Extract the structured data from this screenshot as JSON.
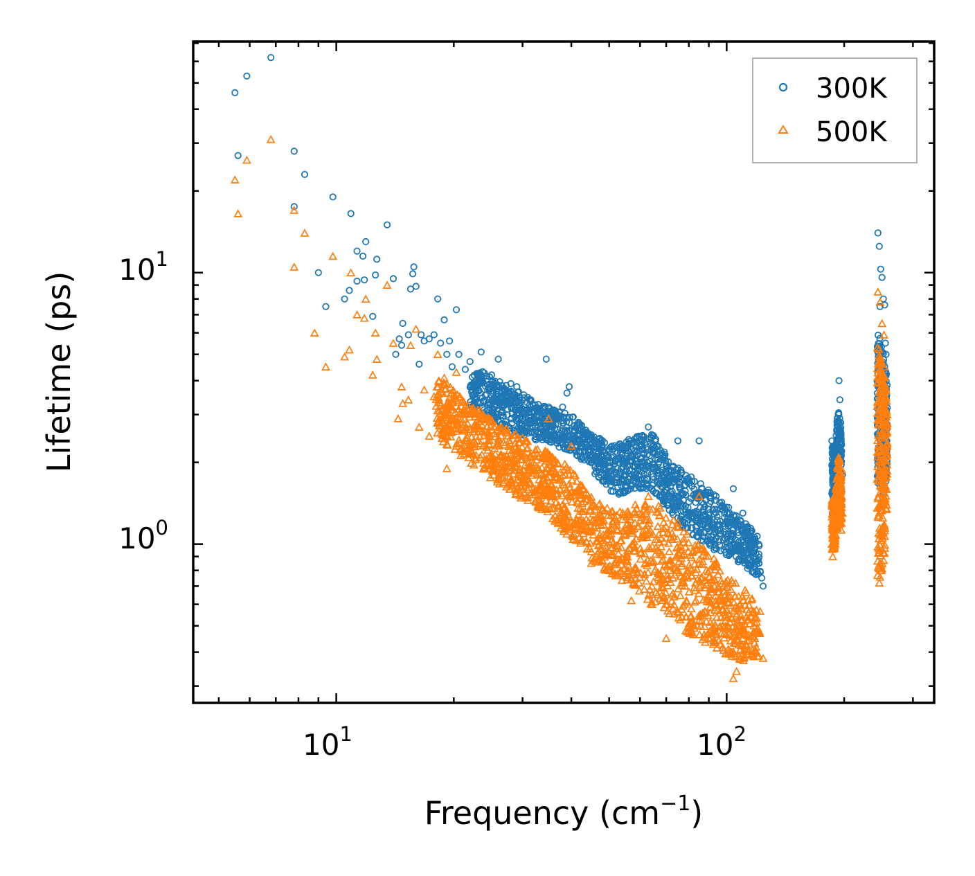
{
  "chart_data": {
    "type": "scatter",
    "title": "",
    "xlabel": "Frequency (cm",
    "xlabel_sup": "−1",
    "xlabel_tail": ")",
    "ylabel": "Lifetime (ps)",
    "xscale": "log",
    "yscale": "log",
    "xlim": [
      4.3,
      340
    ],
    "ylim": [
      0.26,
      71
    ],
    "x_ticks": [
      {
        "value": 10,
        "base": "10",
        "exp": "1"
      },
      {
        "value": 100,
        "base": "10",
        "exp": "2"
      }
    ],
    "y_ticks": [
      {
        "value": 1,
        "base": "10",
        "exp": "0"
      },
      {
        "value": 10,
        "base": "10",
        "exp": "1"
      }
    ],
    "legend_position": "top-right",
    "series": [
      {
        "name": "300K",
        "marker": "circle",
        "color": "#1f77b4",
        "points": [
          [
            5.5,
            46
          ],
          [
            5.6,
            27
          ],
          [
            5.9,
            53
          ],
          [
            6.8,
            62
          ],
          [
            7.8,
            28
          ],
          [
            7.8,
            17.5
          ],
          [
            8.3,
            23
          ],
          [
            9.0,
            10
          ],
          [
            9.4,
            7.5
          ],
          [
            9.8,
            19
          ],
          [
            10.5,
            8
          ],
          [
            10.8,
            8.6
          ],
          [
            10.9,
            16.5
          ],
          [
            11.3,
            12
          ],
          [
            11.3,
            9.3
          ],
          [
            11.7,
            11.5
          ],
          [
            11.8,
            9.4
          ],
          [
            11.9,
            13
          ],
          [
            12.4,
            6.9
          ],
          [
            12.6,
            9.8
          ],
          [
            12.7,
            11.2
          ],
          [
            13.5,
            15
          ],
          [
            14,
            9.5
          ],
          [
            14.2,
            5
          ],
          [
            14.5,
            5.7
          ],
          [
            14.7,
            5.4
          ],
          [
            14.8,
            6.5
          ],
          [
            15.3,
            5.9
          ],
          [
            15.5,
            8.7
          ],
          [
            15.7,
            9.9
          ],
          [
            15.8,
            10.5
          ],
          [
            16,
            8.9
          ],
          [
            16.3,
            4.6
          ],
          [
            16.5,
            5.9
          ],
          [
            16.8,
            5.6
          ],
          [
            17.3,
            5.7
          ],
          [
            17.8,
            5.9
          ],
          [
            18.2,
            8
          ],
          [
            18.5,
            5.5
          ],
          [
            18.9,
            6.7
          ],
          [
            19.2,
            5
          ],
          [
            19.5,
            5.6
          ],
          [
            19.8,
            4.5
          ],
          [
            20.3,
            7.3
          ],
          [
            20.6,
            5
          ],
          [
            21.4,
            4.4
          ],
          [
            22,
            4.7
          ],
          [
            23.5,
            5.1
          ],
          [
            25,
            4.2
          ],
          [
            26,
            4.8
          ],
          [
            28,
            3.9
          ],
          [
            29,
            3.8
          ],
          [
            34.5,
            4.8
          ],
          [
            38,
            3.2
          ],
          [
            39,
            3.6
          ],
          [
            39.5,
            3.8
          ],
          [
            55,
            2.2
          ],
          [
            63,
            2.7
          ],
          [
            75,
            2.4
          ],
          [
            85,
            2.4
          ],
          [
            94,
            1.5
          ],
          [
            104,
            1.6
          ],
          [
            110,
            1.3
          ],
          [
            115,
            1.1
          ],
          [
            118,
            0.95
          ],
          [
            121,
            0.85
          ],
          [
            123,
            0.75
          ],
          [
            124,
            0.7
          ],
          [
            186,
            2.4
          ],
          [
            187,
            1.7
          ],
          [
            188,
            1.5
          ],
          [
            194,
            4
          ],
          [
            195,
            3.4
          ],
          [
            196,
            2.8
          ],
          [
            197,
            2.2
          ],
          [
            198,
            1.8
          ],
          [
            244,
            14
          ],
          [
            246,
            12.5
          ],
          [
            248,
            10.3
          ],
          [
            250,
            9.6
          ],
          [
            252,
            8
          ],
          [
            247,
            7.5
          ],
          [
            254,
            7.6
          ],
          [
            255,
            5.5
          ],
          [
            256,
            5
          ]
        ],
        "bands": [
          [
            [
              22,
              3.2,
              4.6
            ],
            [
              27,
              2.6,
              3.9
            ],
            [
              33,
              2.4,
              3.3
            ],
            [
              40,
              2.2,
              3
            ],
            [
              46,
              1.8,
              2.5
            ],
            [
              52,
              1.5,
              2.3
            ],
            [
              58,
              1.6,
              2.5
            ],
            [
              64,
              1.6,
              2.6
            ],
            [
              72,
              1.3,
              2
            ],
            [
              80,
              1.1,
              1.8
            ],
            [
              92,
              0.95,
              1.55
            ],
            [
              102,
              0.9,
              1.35
            ],
            [
              112,
              0.82,
              1.2
            ],
            [
              122,
              0.75,
              1.05
            ]
          ],
          [
            [
              186,
              1.3,
              2.4
            ],
            [
              189,
              1.2,
              2.2
            ],
            [
              193,
              1.5,
              3.2
            ],
            [
              197,
              1.4,
              2.6
            ]
          ],
          [
            [
              243,
              1.7,
              6.3
            ],
            [
              248,
              1.6,
              5.6
            ],
            [
              253,
              1.5,
              5
            ],
            [
              258,
              1.8,
              4
            ]
          ]
        ]
      },
      {
        "name": "500K",
        "marker": "triangle",
        "color": "#ff7f0e",
        "points": [
          [
            5.5,
            22
          ],
          [
            5.6,
            16.5
          ],
          [
            5.9,
            26
          ],
          [
            6.8,
            31
          ],
          [
            7.8,
            17
          ],
          [
            7.8,
            10.5
          ],
          [
            8.3,
            14
          ],
          [
            8.8,
            6
          ],
          [
            9.4,
            4.5
          ],
          [
            9.8,
            11.5
          ],
          [
            10.5,
            4.9
          ],
          [
            10.8,
            5.2
          ],
          [
            10.9,
            10
          ],
          [
            11.3,
            7
          ],
          [
            11.8,
            6.8
          ],
          [
            11.9,
            8
          ],
          [
            12.4,
            4.2
          ],
          [
            12.6,
            6
          ],
          [
            12.7,
            4.8
          ],
          [
            13.5,
            9
          ],
          [
            14,
            5.5
          ],
          [
            14.4,
            2.9
          ],
          [
            14.7,
            3.8
          ],
          [
            14.8,
            3.3
          ],
          [
            15.3,
            3.4
          ],
          [
            15.5,
            5.4
          ],
          [
            16,
            6.2
          ],
          [
            16.3,
            2.7
          ],
          [
            16.8,
            3.7
          ],
          [
            17.3,
            2.5
          ],
          [
            17.8,
            3.5
          ],
          [
            18.2,
            5
          ],
          [
            18.9,
            4.1
          ],
          [
            19.2,
            1.9
          ],
          [
            19.5,
            3.3
          ],
          [
            20.3,
            4.3
          ],
          [
            20.6,
            2.9
          ],
          [
            22,
            2.3
          ],
          [
            25,
            2.1
          ],
          [
            35,
            2.9
          ],
          [
            38,
            1.4
          ],
          [
            40,
            2.3
          ],
          [
            45,
            0.85
          ],
          [
            50,
            0.8
          ],
          [
            57,
            0.62
          ],
          [
            63,
            1.5
          ],
          [
            70,
            0.45
          ],
          [
            75,
            1.2
          ],
          [
            85,
            1.5
          ],
          [
            94,
            0.6
          ],
          [
            104,
            0.32
          ],
          [
            106,
            0.34
          ],
          [
            110,
            0.5
          ],
          [
            118,
            0.45
          ],
          [
            124,
            0.38
          ],
          [
            186,
            1.0
          ],
          [
            187,
            0.9
          ],
          [
            195,
            1.7
          ],
          [
            197,
            1.5
          ],
          [
            198,
            1.3
          ],
          [
            244,
            8.5
          ],
          [
            247,
            7.8
          ],
          [
            250,
            6.5
          ],
          [
            253,
            5.9
          ],
          [
            246,
            0.72
          ],
          [
            248,
            0.8
          ]
        ],
        "bands": [
          [
            [
              18,
              2.5,
              4.2
            ],
            [
              22,
              2,
              3.3
            ],
            [
              27,
              1.6,
              2.7
            ],
            [
              33,
              1.35,
              2.3
            ],
            [
              40,
              1.05,
              1.9
            ],
            [
              46,
              0.85,
              1.45
            ],
            [
              52,
              0.75,
              1.3
            ],
            [
              58,
              0.7,
              1.4
            ],
            [
              64,
              0.6,
              1.5
            ],
            [
              72,
              0.52,
              1.25
            ],
            [
              80,
              0.46,
              1.1
            ],
            [
              92,
              0.42,
              0.9
            ],
            [
              102,
              0.38,
              0.75
            ],
            [
              112,
              0.37,
              0.68
            ],
            [
              122,
              0.38,
              0.58
            ]
          ],
          [
            [
              186,
              0.95,
              1.5
            ],
            [
              189,
              0.95,
              1.4
            ],
            [
              193,
              1.2,
              2.2
            ],
            [
              197,
              1.1,
              1.9
            ]
          ],
          [
            [
              243,
              0.75,
              5.5
            ],
            [
              248,
              0.75,
              5
            ],
            [
              253,
              0.85,
              4.6
            ],
            [
              258,
              1.5,
              3.2
            ]
          ]
        ]
      }
    ]
  }
}
